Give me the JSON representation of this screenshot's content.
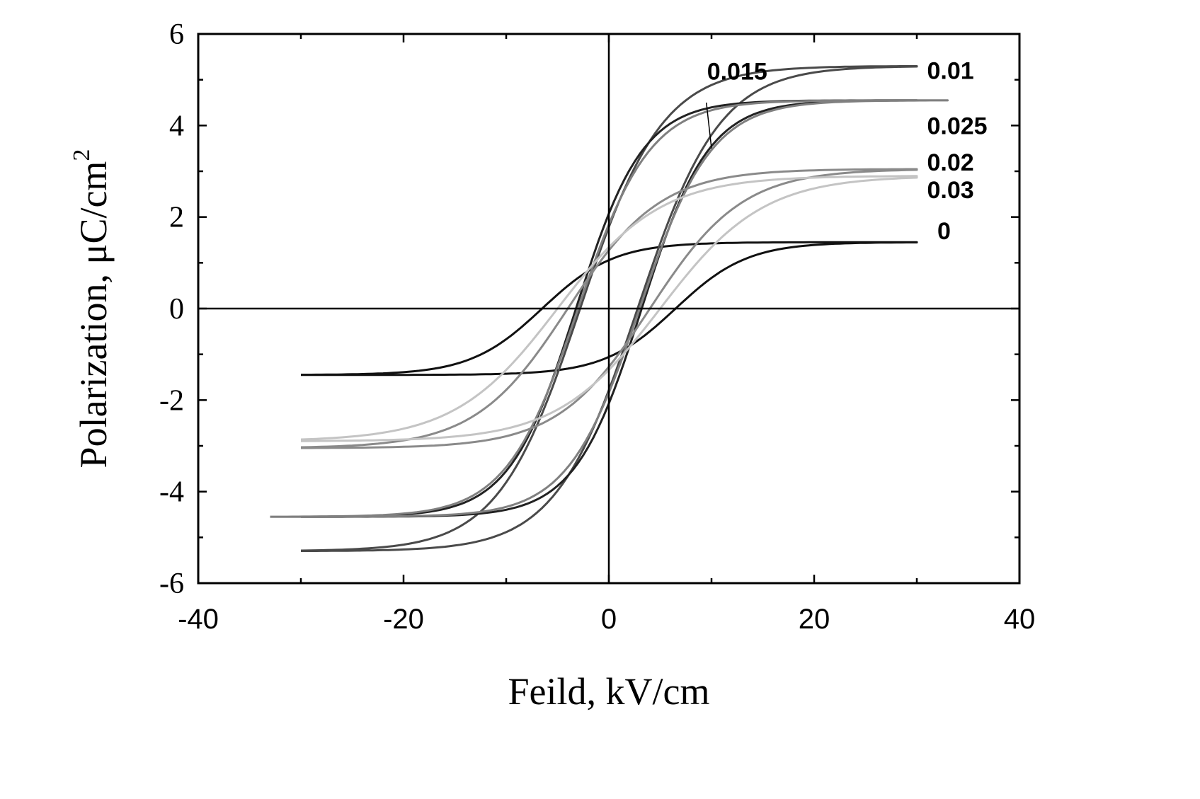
{
  "chart_data": {
    "type": "line",
    "title": "",
    "xlabel": "Feild, kV/cm",
    "ylabel_main": "Polarization, μC/cm",
    "ylabel_sup": "2",
    "xlim": [
      -40,
      40
    ],
    "ylim": [
      -6,
      6
    ],
    "xticks": [
      -40,
      -20,
      0,
      20,
      40
    ],
    "xtick_labels": [
      "-40",
      "-20",
      "0",
      "20",
      "40"
    ],
    "yticks": [
      -6,
      -4,
      -2,
      0,
      2,
      4,
      6
    ],
    "ytick_labels": [
      "-6",
      "-4",
      "-2",
      "0",
      "2",
      "4",
      "6"
    ],
    "grid": false,
    "zero_lines": true,
    "series": [
      {
        "label": "0",
        "color": "#111111",
        "emax": 30,
        "ps": 1.45,
        "ec": 6.5,
        "w": 7,
        "pr": 0.85
      },
      {
        "label": "0.01",
        "color": "#4a4a4a",
        "emax": 30,
        "ps": 5.3,
        "ec": 2.8,
        "w": 8,
        "pr": 1.8
      },
      {
        "label": "0.015",
        "color": "#222222",
        "emax": 30,
        "ps": 4.55,
        "ec": 3.2,
        "w": 6.5,
        "pr": 2.1
      },
      {
        "label": "0.025",
        "color": "#808080",
        "emax": 33,
        "ps": 4.55,
        "ec": 3.0,
        "w": 7,
        "pr": 1.8
      },
      {
        "label": "0.02",
        "color": "#8a8a8a",
        "emax": 30,
        "ps": 3.05,
        "ec": 4.0,
        "w": 9,
        "pr": 1.0
      },
      {
        "label": "0.03",
        "color": "#c4c4c4",
        "emax": 30,
        "ps": 2.9,
        "ec": 5.0,
        "w": 10,
        "pr": 0.95
      }
    ],
    "annotations": [
      {
        "text": "0.015",
        "x": 10,
        "y": 3.5,
        "text_x": 12.5,
        "text_y": 5.0
      },
      {
        "text": "0.01",
        "x": 31,
        "y": 5.2
      },
      {
        "text": "0.025",
        "x": 31,
        "y": 4.0
      },
      {
        "text": "0.02",
        "x": 31,
        "y": 3.2
      },
      {
        "text": "0.03",
        "x": 31,
        "y": 2.6
      },
      {
        "text": "0",
        "x": 32,
        "y": 1.7
      }
    ]
  }
}
